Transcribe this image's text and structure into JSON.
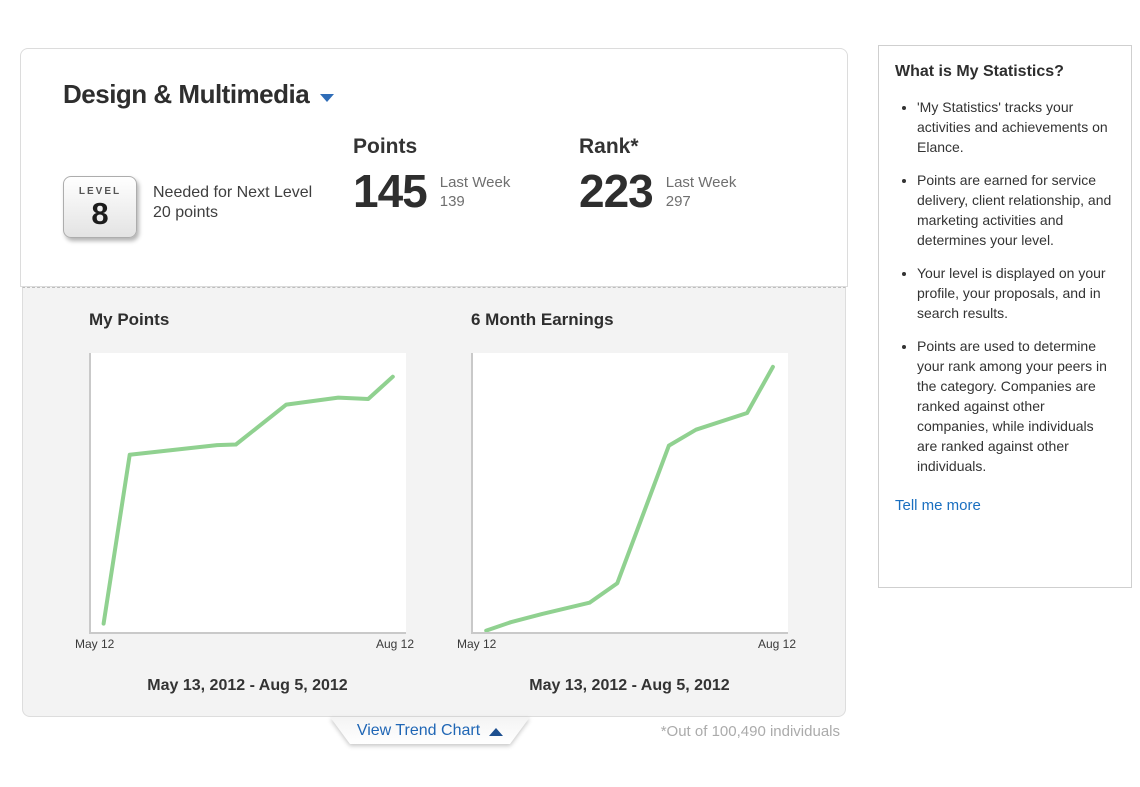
{
  "header": {
    "category_title": "Design & Multimedia"
  },
  "level_badge": {
    "label": "LEVEL",
    "value": "8"
  },
  "next_level": {
    "line1": "Needed for Next Level",
    "line2": "20 points"
  },
  "stats": [
    {
      "label": "Points",
      "value": "145",
      "sub_label": "Last Week",
      "sub_value": "139"
    },
    {
      "label": "Rank*",
      "value": "223",
      "sub_label": "Last Week",
      "sub_value": "297"
    }
  ],
  "chart_data": [
    {
      "type": "line",
      "title": "My Points",
      "x_start_label": "May 12",
      "x_end_label": "Aug 12",
      "date_range": "May 13, 2012 - Aug 5, 2012",
      "line_color": "#90d190",
      "xlabel": "",
      "ylabel": "",
      "y_axis_note": "unlabeled; y = fraction of plot height (0-1), x = fraction of May 12 - Aug 12 range",
      "points": [
        {
          "x": 0.04,
          "y": 0.03
        },
        {
          "x": 0.123,
          "y": 0.635
        },
        {
          "x": 0.4,
          "y": 0.67
        },
        {
          "x": 0.46,
          "y": 0.672
        },
        {
          "x": 0.62,
          "y": 0.815
        },
        {
          "x": 0.785,
          "y": 0.84
        },
        {
          "x": 0.88,
          "y": 0.835
        },
        {
          "x": 0.958,
          "y": 0.915
        }
      ]
    },
    {
      "type": "line",
      "title": "6 Month Earnings",
      "x_start_label": "May 12",
      "x_end_label": "Aug 12",
      "date_range": "May 13, 2012 - Aug 5, 2012",
      "line_color": "#90d190",
      "xlabel": "",
      "ylabel": "",
      "y_axis_note": "unlabeled; y = fraction of plot height (0-1), x = fraction of May 12 - Aug 12 range",
      "points": [
        {
          "x": 0.042,
          "y": 0.005
        },
        {
          "x": 0.12,
          "y": 0.035
        },
        {
          "x": 0.22,
          "y": 0.065
        },
        {
          "x": 0.37,
          "y": 0.105
        },
        {
          "x": 0.458,
          "y": 0.175
        },
        {
          "x": 0.622,
          "y": 0.668
        },
        {
          "x": 0.708,
          "y": 0.725
        },
        {
          "x": 0.87,
          "y": 0.785
        },
        {
          "x": 0.952,
          "y": 0.95
        }
      ]
    }
  ],
  "footer": {
    "trend_button_label": "View Trend Chart",
    "footnote": "*Out of 100,490 individuals"
  },
  "sidebar": {
    "title": "What is My Statistics?",
    "bullets": [
      "'My Statistics' tracks your activities and achievements on Elance.",
      "Points are earned for service delivery, client relationship, and marketing activities and determines your level.",
      "Your level is displayed on your profile, your proposals, and in search results.",
      "Points are used to determine your rank among your peers in the category. Companies are ranked against other companies, while individuals are ranked against other individuals."
    ],
    "link_label": "Tell me more"
  }
}
